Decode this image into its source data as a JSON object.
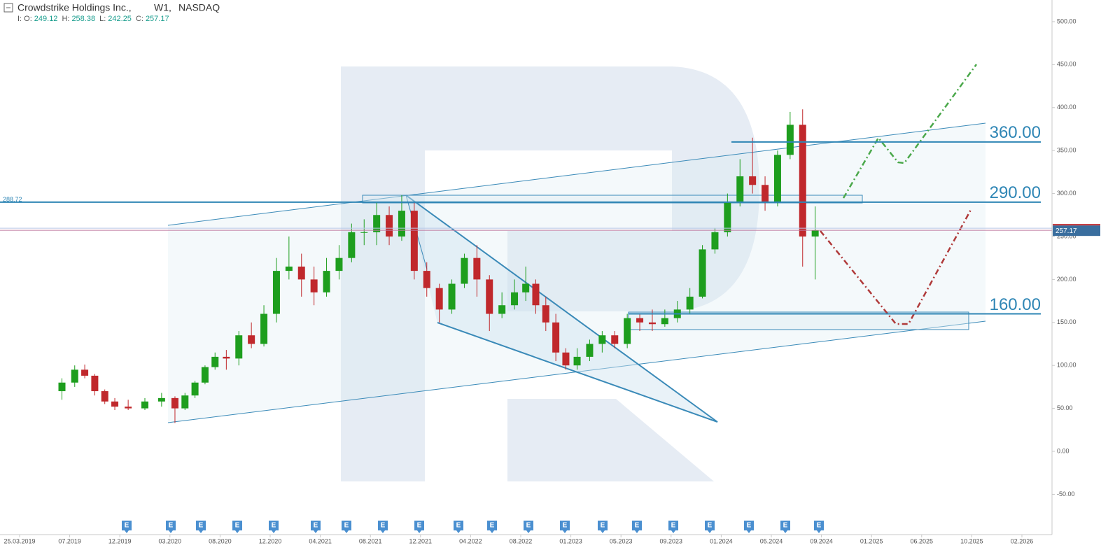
{
  "header": {
    "symbol": "Crowdstrike Holdings Inc.,",
    "timeframe": "W1,",
    "exchange": "NASDAQ",
    "ohlc": [
      {
        "label": "I: O:",
        "value": 249.12
      },
      {
        "label": "H:",
        "value": 258.38
      },
      {
        "label": "L:",
        "value": 242.25
      },
      {
        "label": "C:",
        "value": 257.17
      }
    ]
  },
  "chart_data": {
    "type": "candlestick",
    "x": [
      "06.2019",
      "07.2019",
      "08.2019",
      "09.2019",
      "10.2019",
      "11.2019",
      "12.2019",
      "01.2020",
      "02.2020",
      "03.2020",
      "04.2020",
      "05.2020",
      "06.2020",
      "07.2020",
      "08.2020",
      "09.2020",
      "10.2020",
      "11.2020",
      "12.2020",
      "01.2021",
      "02.2021",
      "03.2021",
      "04.2021",
      "05.2021",
      "06.2021",
      "07.2021",
      "08.2021",
      "09.2021",
      "10.2021",
      "11.2021",
      "12.2021",
      "01.2022",
      "02.2022",
      "03.2022",
      "04.2022",
      "05.2022",
      "06.2022",
      "07.2022",
      "08.2022",
      "09.2022",
      "10.2022",
      "11.2022",
      "12.2022",
      "01.2023",
      "02.2023",
      "03.2023",
      "04.2023",
      "05.2023",
      "06.2023",
      "07.2023",
      "08.2023",
      "09.2023",
      "10.2023",
      "11.2023",
      "12.2023",
      "01.2024",
      "02.2024",
      "03.2024",
      "04.2024",
      "05.2024",
      "06.2024",
      "07.2024",
      "08.2024"
    ],
    "open": [
      70,
      80,
      95,
      88,
      70,
      58,
      52,
      50,
      58,
      62,
      50,
      65,
      80,
      98,
      110,
      108,
      135,
      125,
      160,
      210,
      215,
      200,
      185,
      210,
      225,
      255,
      255,
      275,
      250,
      280,
      210,
      190,
      165,
      195,
      225,
      200,
      160,
      170,
      185,
      195,
      170,
      150,
      115,
      100,
      110,
      125,
      135,
      125,
      155,
      150,
      148,
      155,
      165,
      180,
      235,
      255,
      290,
      320,
      310,
      290,
      345,
      380,
      250
    ],
    "high": [
      85,
      100,
      101,
      90,
      72,
      62,
      60,
      62,
      68,
      64,
      68,
      82,
      100,
      115,
      118,
      140,
      150,
      170,
      225,
      250,
      230,
      215,
      225,
      240,
      265,
      270,
      290,
      285,
      298,
      290,
      220,
      195,
      200,
      230,
      240,
      205,
      185,
      200,
      215,
      200,
      180,
      160,
      120,
      120,
      130,
      140,
      140,
      160,
      160,
      165,
      165,
      175,
      190,
      240,
      260,
      300,
      340,
      365,
      320,
      350,
      395,
      398,
      285
    ],
    "low": [
      60,
      75,
      85,
      65,
      55,
      48,
      48,
      48,
      52,
      33,
      48,
      62,
      78,
      95,
      95,
      100,
      120,
      122,
      150,
      200,
      180,
      170,
      180,
      200,
      220,
      240,
      240,
      240,
      245,
      200,
      180,
      150,
      160,
      190,
      180,
      140,
      155,
      165,
      175,
      160,
      140,
      105,
      95,
      95,
      105,
      115,
      120,
      120,
      140,
      140,
      145,
      150,
      160,
      178,
      230,
      250,
      285,
      300,
      280,
      285,
      340,
      215,
      200
    ],
    "close": [
      80,
      95,
      88,
      70,
      58,
      52,
      50,
      58,
      62,
      50,
      65,
      80,
      98,
      110,
      108,
      135,
      125,
      160,
      210,
      215,
      200,
      185,
      210,
      225,
      255,
      255,
      275,
      250,
      280,
      210,
      190,
      165,
      195,
      225,
      200,
      160,
      170,
      185,
      195,
      170,
      150,
      115,
      100,
      110,
      125,
      135,
      125,
      155,
      150,
      148,
      155,
      165,
      180,
      235,
      255,
      290,
      320,
      310,
      290,
      345,
      380,
      250,
      257.17
    ],
    "up_color": "#1e9e1e",
    "down_color": "#c0282c",
    "ylim": [
      -85.5,
      525.2
    ],
    "yticks": [
      {
        "value": -50,
        "label": "-50.00"
      },
      {
        "value": 0,
        "label": "0.00"
      },
      {
        "value": 50,
        "label": "50.00"
      },
      {
        "value": 100,
        "label": "100.00"
      },
      {
        "value": 150,
        "label": "150.00"
      },
      {
        "value": 200,
        "label": "200.00"
      },
      {
        "value": 250,
        "label": "250.00"
      },
      {
        "value": 300,
        "label": "300.00"
      },
      {
        "value": 350,
        "label": "350.00"
      },
      {
        "value": 400,
        "label": "400.00"
      },
      {
        "value": 450,
        "label": "450.00"
      },
      {
        "value": 500,
        "label": "500.00"
      }
    ],
    "xticks": [
      "25.03.2019",
      "07.2019",
      "12.2019",
      "03.2020",
      "08.2020",
      "12.2020",
      "04.2021",
      "08.2021",
      "12.2021",
      "04.2022",
      "08.2022",
      "01.2023",
      "05.2023",
      "09.2023",
      "01.2024",
      "05.2024",
      "09.2024",
      "01.2025",
      "06.2025",
      "10.2025",
      "02.2026"
    ],
    "levels": [
      {
        "value": 360,
        "label": "360.00"
      },
      {
        "value": 290,
        "label": "290.00"
      },
      {
        "value": 160,
        "label": "160.00"
      }
    ],
    "marker_line": {
      "value": 288.72,
      "label": "288.72"
    },
    "last_price": {
      "value": 257.17,
      "label": "257.17"
    },
    "earnings_label": "E"
  }
}
